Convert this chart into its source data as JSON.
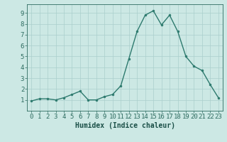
{
  "x": [
    0,
    1,
    2,
    3,
    4,
    5,
    6,
    7,
    8,
    9,
    10,
    11,
    12,
    13,
    14,
    15,
    16,
    17,
    18,
    19,
    20,
    21,
    22,
    23
  ],
  "y": [
    0.9,
    1.1,
    1.1,
    1.0,
    1.2,
    1.5,
    1.8,
    1.0,
    1.0,
    1.3,
    1.5,
    2.3,
    4.8,
    7.3,
    8.8,
    9.2,
    7.9,
    8.8,
    7.3,
    5.0,
    4.1,
    3.7,
    2.4,
    1.2
  ],
  "line_color": "#2d7a6e",
  "marker": "o",
  "marker_size": 2,
  "line_width": 1.0,
  "bg_color": "#cce8e4",
  "grid_color": "#aacfcc",
  "xlabel": "Humidex (Indice chaleur)",
  "xlim": [
    -0.5,
    23.5
  ],
  "ylim": [
    0,
    9.8
  ],
  "yticks": [
    1,
    2,
    3,
    4,
    5,
    6,
    7,
    8,
    9
  ],
  "xticks": [
    0,
    1,
    2,
    3,
    4,
    5,
    6,
    7,
    8,
    9,
    10,
    11,
    12,
    13,
    14,
    15,
    16,
    17,
    18,
    19,
    20,
    21,
    22,
    23
  ],
  "tick_color": "#2d6b60",
  "label_color": "#1a4f47",
  "xlabel_fontsize": 7,
  "tick_fontsize": 6.5
}
